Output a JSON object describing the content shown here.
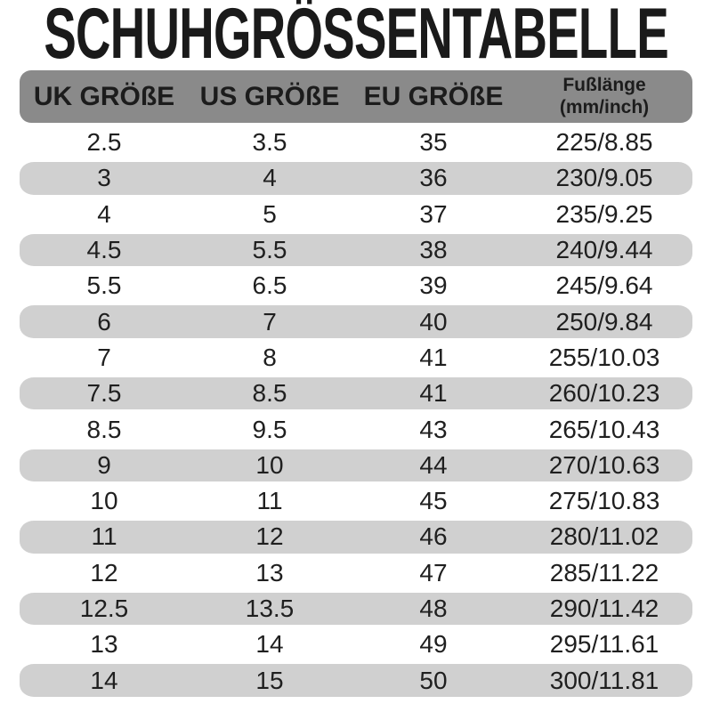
{
  "title": "SCHUHGRÖSSENTABELLE",
  "chart_data": {
    "type": "table",
    "title": "SCHUHGRÖSSENTABELLE",
    "columns": [
      "UK GRÖßE",
      "US GRÖßE",
      "EU GRÖßE",
      "Fußlänge (mm/inch)"
    ],
    "foot_header": {
      "line1": "Fußlänge",
      "line2": "(mm/inch)"
    },
    "rows": [
      [
        "2.5",
        "3.5",
        "35",
        "225/8.85"
      ],
      [
        "3",
        "4",
        "36",
        "230/9.05"
      ],
      [
        "4",
        "5",
        "37",
        "235/9.25"
      ],
      [
        "4.5",
        "5.5",
        "38",
        "240/9.44"
      ],
      [
        "5.5",
        "6.5",
        "39",
        "245/9.64"
      ],
      [
        "6",
        "7",
        "40",
        "250/9.84"
      ],
      [
        "7",
        "8",
        "41",
        "255/10.03"
      ],
      [
        "7.5",
        "8.5",
        "41",
        "260/10.23"
      ],
      [
        "8.5",
        "9.5",
        "43",
        "265/10.43"
      ],
      [
        "9",
        "10",
        "44",
        "270/10.63"
      ],
      [
        "10",
        "11",
        "45",
        "275/10.83"
      ],
      [
        "11",
        "12",
        "46",
        "280/11.02"
      ],
      [
        "12",
        "13",
        "47",
        "285/11.22"
      ],
      [
        "12.5",
        "13.5",
        "48",
        "290/11.42"
      ],
      [
        "13",
        "14",
        "49",
        "295/11.61"
      ],
      [
        "14",
        "15",
        "50",
        "300/11.81"
      ]
    ],
    "layout": {
      "stripe_pattern": "even rows (2nd, 4th, ...) have light gray rounded stripes",
      "header_style": "gray rounded bar"
    }
  },
  "colors": {
    "header_bg": "#8a8a8a",
    "stripe_bg": "#d0d0d0",
    "text_color": "#1f1f1f",
    "title_color": "#1a1a1a"
  }
}
